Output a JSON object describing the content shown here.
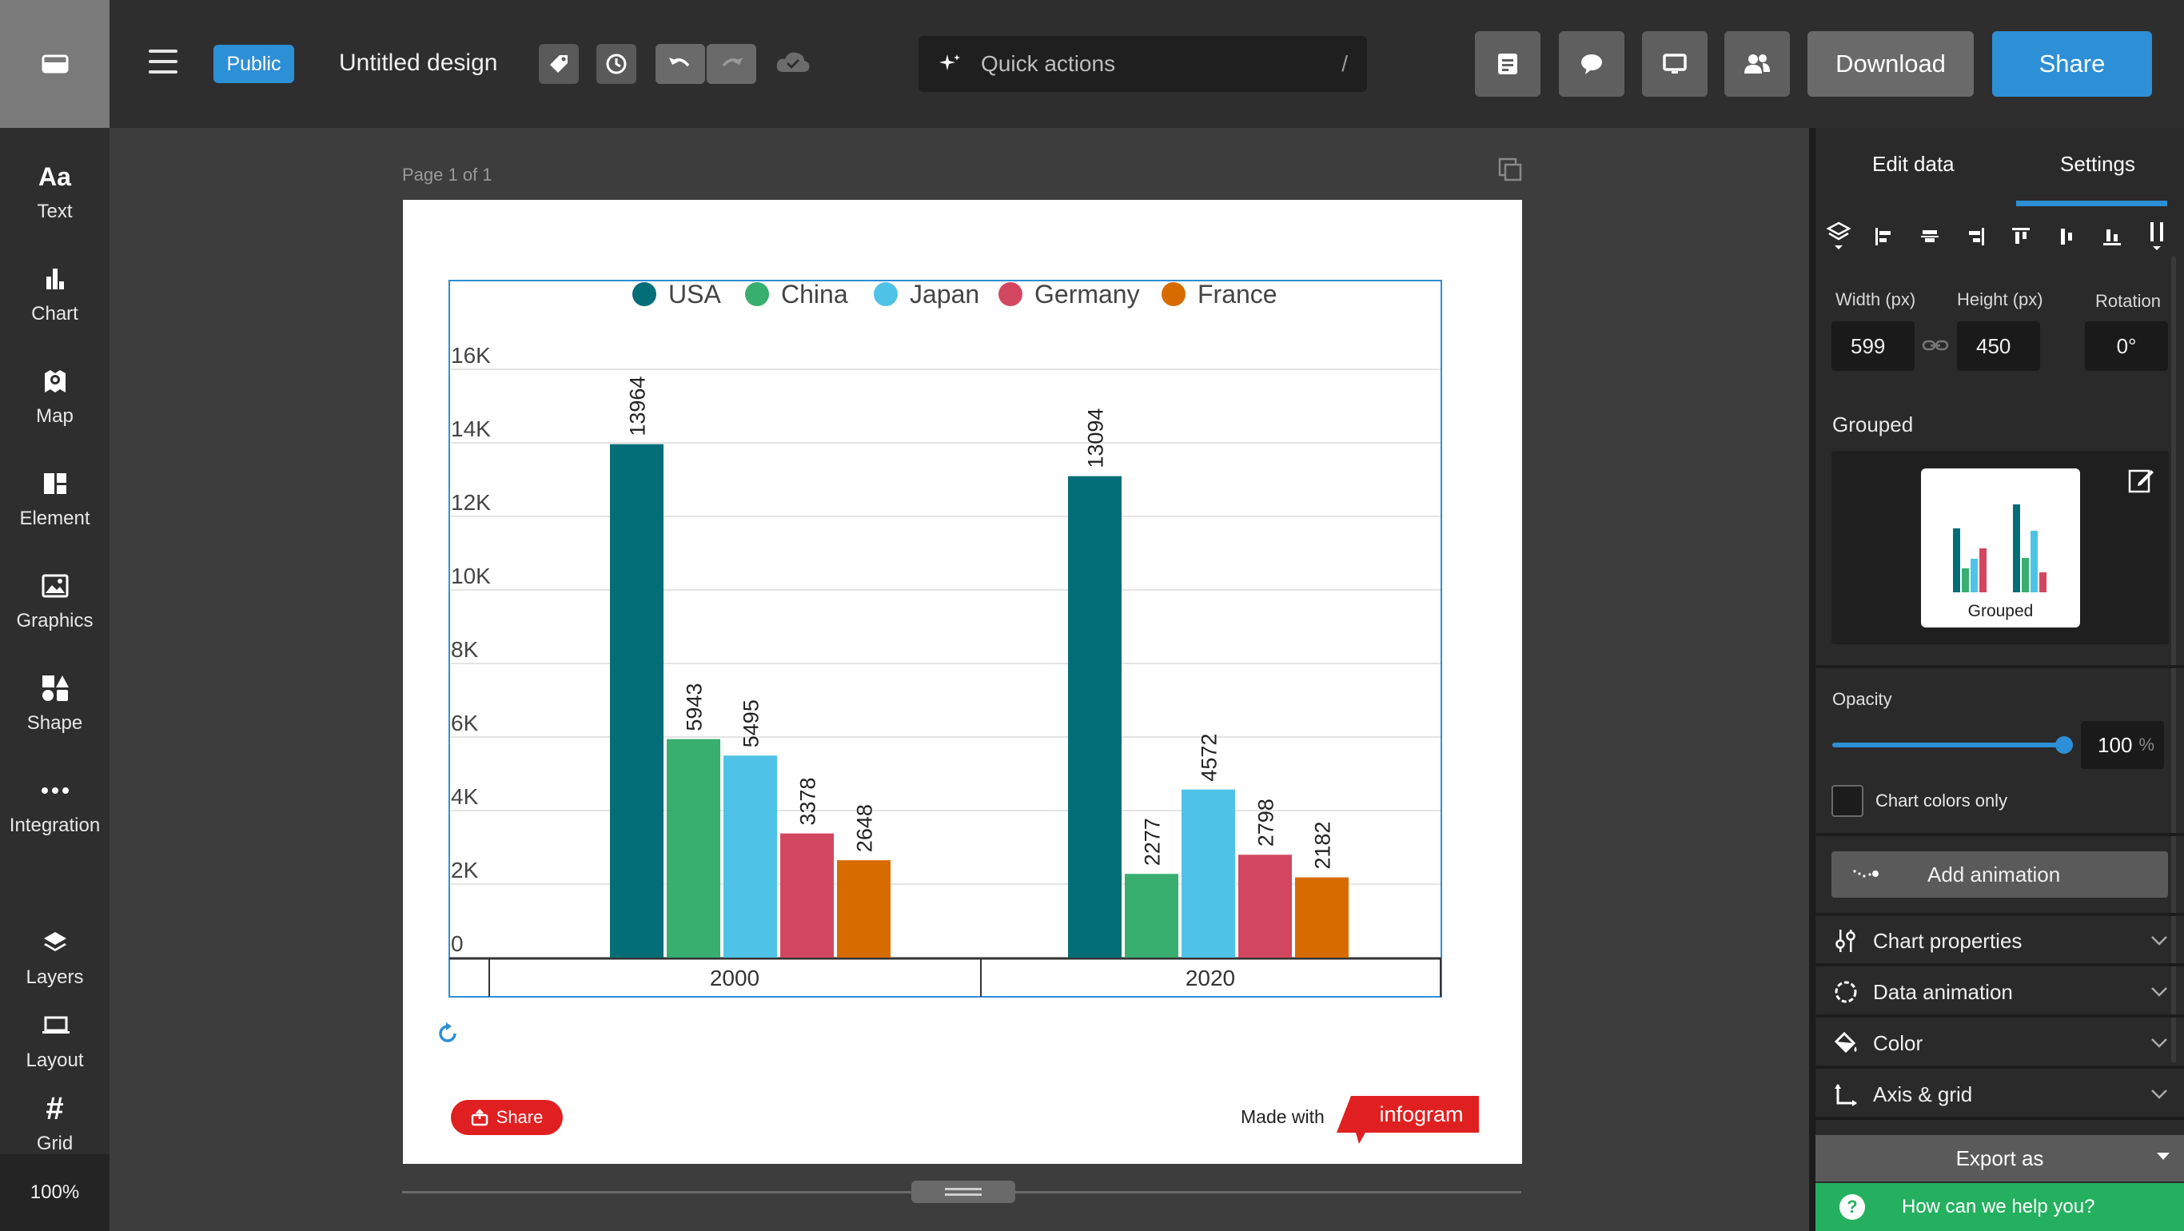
{
  "header": {
    "visibility_badge": "Public",
    "design_title": "Untitled design",
    "quick_actions": {
      "placeholder": "Quick actions",
      "shortcut": "/"
    },
    "download_label": "Download",
    "share_label": "Share"
  },
  "sidebar": {
    "items": [
      {
        "label": "Text",
        "icon": "text-icon"
      },
      {
        "label": "Chart",
        "icon": "chart-icon"
      },
      {
        "label": "Map",
        "icon": "map-icon"
      },
      {
        "label": "Element",
        "icon": "element-icon"
      },
      {
        "label": "Graphics",
        "icon": "graphics-icon"
      },
      {
        "label": "Shape",
        "icon": "shape-icon"
      },
      {
        "label": "Integration",
        "icon": "integration-icon"
      },
      {
        "label": "Layers",
        "icon": "layers-icon"
      },
      {
        "label": "Layout",
        "icon": "layout-icon"
      },
      {
        "label": "Grid",
        "icon": "grid-icon"
      }
    ],
    "zoom": "100%"
  },
  "canvas": {
    "page_label": "Page 1 of 1",
    "share_button": "Share",
    "made_with": "Made with",
    "brand": "infogram"
  },
  "chart_data": {
    "type": "bar",
    "categories": [
      "2000",
      "2020"
    ],
    "series": [
      {
        "name": "USA",
        "color": "#036d78",
        "values": [
          13964,
          13094
        ]
      },
      {
        "name": "China",
        "color": "#38ae6f",
        "values": [
          5943,
          2277
        ]
      },
      {
        "name": "Japan",
        "color": "#4fc3e7",
        "values": [
          5495,
          4572
        ]
      },
      {
        "name": "Germany",
        "color": "#d2475f",
        "values": [
          3378,
          2798
        ]
      },
      {
        "name": "France",
        "color": "#d86b00",
        "values": [
          2648,
          2182
        ]
      }
    ],
    "ylim": [
      0,
      16000
    ],
    "yticks": [
      "0",
      "2K",
      "4K",
      "6K",
      "8K",
      "10K",
      "12K",
      "14K",
      "16K"
    ],
    "legend": "top",
    "grid": true
  },
  "panel": {
    "tabs": [
      "Edit data",
      "Settings"
    ],
    "active_tab": "Settings",
    "width_label": "Width (px)",
    "width_value": "599",
    "height_label": "Height (px)",
    "height_value": "450",
    "rotation_label": "Rotation",
    "rotation_value": "0°",
    "chart_type_heading": "Grouped",
    "chart_type_card": "Grouped",
    "opacity_label": "Opacity",
    "opacity_value": "100",
    "opacity_unit": "%",
    "chart_colors_only": "Chart colors only",
    "add_animation": "Add animation",
    "sections": [
      "Chart properties",
      "Data animation",
      "Color",
      "Axis & grid"
    ],
    "export_label": "Export as",
    "help_label": "How can we help you?"
  },
  "colors": {
    "accent": "#2d8fd6",
    "help_green": "#25b060",
    "brand_red": "#e02020"
  }
}
